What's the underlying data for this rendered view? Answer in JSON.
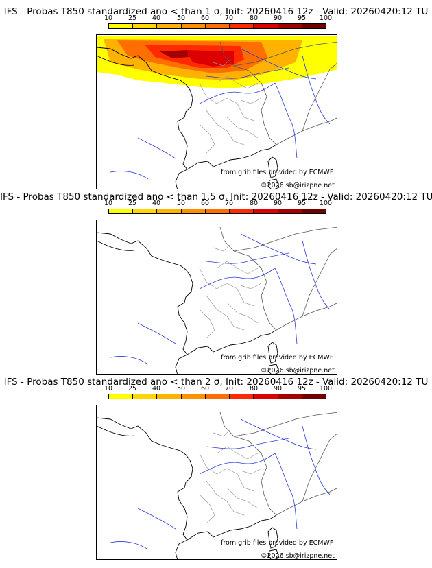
{
  "panels": [
    {
      "title": "IFS - Probas T850  standardized ano < than 1 σ, Init: 20260416 12z - Valid: 20260420:12 TU",
      "has_probability_field": true
    },
    {
      "title": "IFS - Probas T850  standardized ano < than 1.5 σ, Init: 20260416 12z - Valid: 20260420:12 TU",
      "has_probability_field": false
    },
    {
      "title": "IFS - Probas T850  standardized ano < than 2 σ, Init: 20260416 12z - Valid: 20260420:12 TU",
      "has_probability_field": false
    }
  ],
  "scale": {
    "labels": [
      "10",
      "25",
      "40",
      "50",
      "60",
      "70",
      "80",
      "90",
      "95",
      "100"
    ],
    "colors": [
      "#ffff00",
      "#ffd700",
      "#ffb300",
      "#ff9000",
      "#ff6e00",
      "#ff2a00",
      "#dd0000",
      "#a50000",
      "#6e0000"
    ]
  },
  "credits": {
    "source": "from grib files provided by ECMWF",
    "copyright": "©2026 sb@irizpne.net"
  }
}
